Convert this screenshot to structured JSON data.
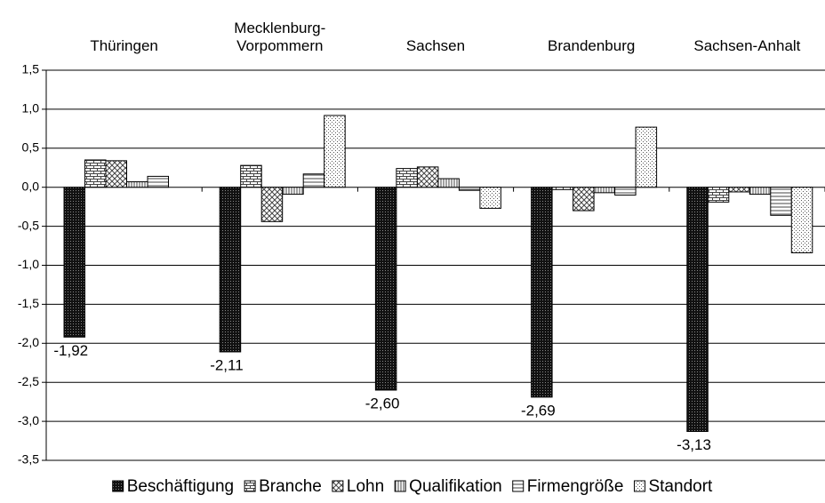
{
  "chart_data": {
    "type": "bar",
    "categories": [
      "Thüringen",
      "Mecklenburg-Vorpommern",
      "Sachsen",
      "Brandenburg",
      "Sachsen-Anhalt"
    ],
    "series": [
      {
        "name": "Beschäftigung",
        "color": "#222222",
        "pattern": "dense-dots",
        "values": [
          -1.92,
          -2.11,
          -2.6,
          -2.69,
          -3.13
        ],
        "value_labels": [
          "-1,92",
          "-2,11",
          "-2,60",
          "-2,69",
          "-3,13"
        ]
      },
      {
        "name": "Branche",
        "color": "#444444",
        "pattern": "bricks",
        "values": [
          0.35,
          0.28,
          0.24,
          -0.03,
          -0.19
        ]
      },
      {
        "name": "Lohn",
        "color": "#444444",
        "pattern": "crosshatch",
        "values": [
          0.34,
          -0.44,
          0.26,
          -0.3,
          -0.06
        ]
      },
      {
        "name": "Qualifikation",
        "color": "#444444",
        "pattern": "vertical",
        "values": [
          0.07,
          -0.09,
          0.11,
          -0.07,
          -0.09
        ]
      },
      {
        "name": "Firmengröße",
        "color": "#444444",
        "pattern": "horizontal",
        "values": [
          0.14,
          0.17,
          -0.04,
          -0.1,
          -0.36
        ]
      },
      {
        "name": "Standort",
        "color": "#666666",
        "pattern": "dots",
        "values": [
          0.0,
          0.92,
          -0.27,
          0.77,
          -0.84
        ]
      }
    ],
    "ylim": [
      -3.5,
      1.5
    ],
    "yticks": [
      {
        "value": 1.5,
        "label": "1,5"
      },
      {
        "value": 1.0,
        "label": "1,0"
      },
      {
        "value": 0.5,
        "label": "0,5"
      },
      {
        "value": 0.0,
        "label": "0,0"
      },
      {
        "value": -0.5,
        "label": "-0,5"
      },
      {
        "value": -1.0,
        "label": "-1,0"
      },
      {
        "value": -1.5,
        "label": "-1,5"
      },
      {
        "value": -2.0,
        "label": "-2,0"
      },
      {
        "value": -2.5,
        "label": "-2,5"
      },
      {
        "value": -3.0,
        "label": "-3,0"
      },
      {
        "value": -3.5,
        "label": "-3,5"
      }
    ],
    "grid": true
  }
}
